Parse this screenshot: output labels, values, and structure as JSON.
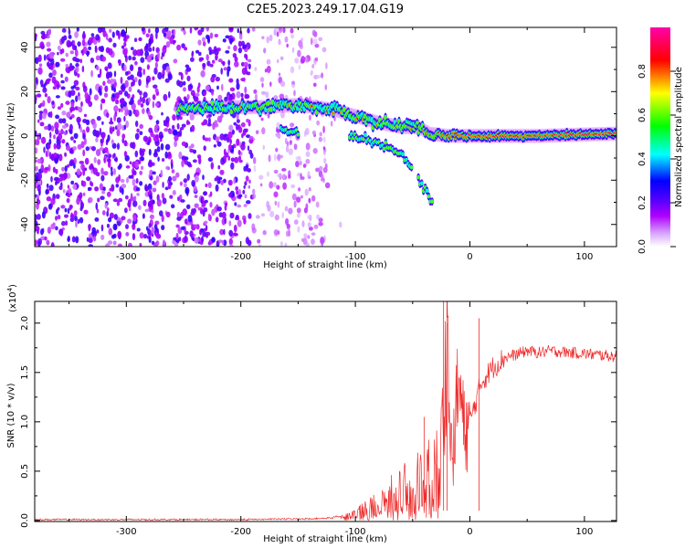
{
  "figure_title": "C2E5.2023.249.17.04.G19",
  "chart_data": [
    {
      "type": "heatmap",
      "xlabel": "Height of straight line (km)",
      "ylabel": "Frequency (Hz)",
      "xlim": [
        -380,
        128
      ],
      "ylim": [
        -50,
        49
      ],
      "x_ticks": [
        -300,
        -200,
        -100,
        0,
        100
      ],
      "y_ticks": [
        -40,
        -20,
        0,
        20,
        40
      ],
      "colorbar": {
        "label": "Normalized spectral amplitude",
        "range": [
          0,
          1
        ],
        "ticks": [
          "0.0",
          "0.2",
          "0.4",
          "0.6",
          "0.8"
        ],
        "colors": [
          "#ffffff",
          "#ae00ff",
          "#4b00ff",
          "#0000ff",
          "#00ffff",
          "#00ff00",
          "#ffff00",
          "#ff0000",
          "#ff00aa"
        ]
      },
      "noise_region_x": [
        -380,
        -120
      ],
      "ridge": {
        "x": [
          -255,
          -220,
          -180,
          -150,
          -120,
          -100,
          -80,
          -60,
          -45,
          -35,
          -20,
          0,
          20,
          60,
          128
        ],
        "frequency": [
          12,
          13,
          13,
          14,
          12,
          9,
          6,
          4,
          4,
          1,
          0,
          0,
          0,
          0,
          1
        ]
      },
      "branches": [
        {
          "x": [
            -165,
            -150
          ],
          "frequency": [
            3,
            2
          ]
        },
        {
          "x": [
            -105,
            -80,
            -60,
            -50
          ],
          "frequency": [
            0,
            -3,
            -8,
            -15
          ]
        },
        {
          "x": [
            -45,
            -38,
            -33
          ],
          "frequency": [
            -20,
            -25,
            -30
          ]
        },
        {
          "x": [
            -55,
            -45
          ],
          "frequency": [
            7,
            5
          ]
        }
      ]
    },
    {
      "type": "line",
      "xlabel": "Height of straight line (km)",
      "ylabel": "SNR (10 * v/v)",
      "y_multiplier": "(x10",
      "y_multiplier_exp": "4",
      "y_multiplier_close": ")",
      "xlim": [
        -380,
        128
      ],
      "ylim": [
        -0.01,
        2.22
      ],
      "x_ticks": [
        -300,
        -200,
        -100,
        0,
        100
      ],
      "y_ticks": [
        "0.0",
        "0.5",
        "1.0",
        "1.5",
        "2.0"
      ],
      "color": "#ee2c2c",
      "series": [
        {
          "x": [
            -380,
            -300,
            -200,
            -130,
            -110,
            -95,
            -80,
            -65,
            -50,
            -40,
            -30,
            -25,
            -22,
            -20,
            -18,
            -15,
            -10,
            -5,
            0,
            5,
            10,
            20,
            30,
            40,
            50,
            60,
            70,
            80,
            90,
            100,
            110,
            120,
            128
          ],
          "values": [
            0.01,
            0.01,
            0.01,
            0.02,
            0.04,
            0.12,
            0.22,
            0.35,
            0.45,
            0.55,
            0.6,
            0.9,
            1.2,
            2.2,
            1.0,
            0.6,
            1.4,
            0.9,
            1.0,
            1.2,
            1.4,
            1.55,
            1.65,
            1.68,
            1.72,
            1.7,
            1.72,
            1.71,
            1.7,
            1.69,
            1.68,
            1.67,
            1.66
          ]
        }
      ],
      "spikes": [
        {
          "x": -23,
          "value": 2.22
        },
        {
          "x": -20,
          "value": 2.0
        },
        {
          "x": 8,
          "value": 2.05
        },
        {
          "x": -40,
          "value": 1.05
        }
      ]
    }
  ]
}
